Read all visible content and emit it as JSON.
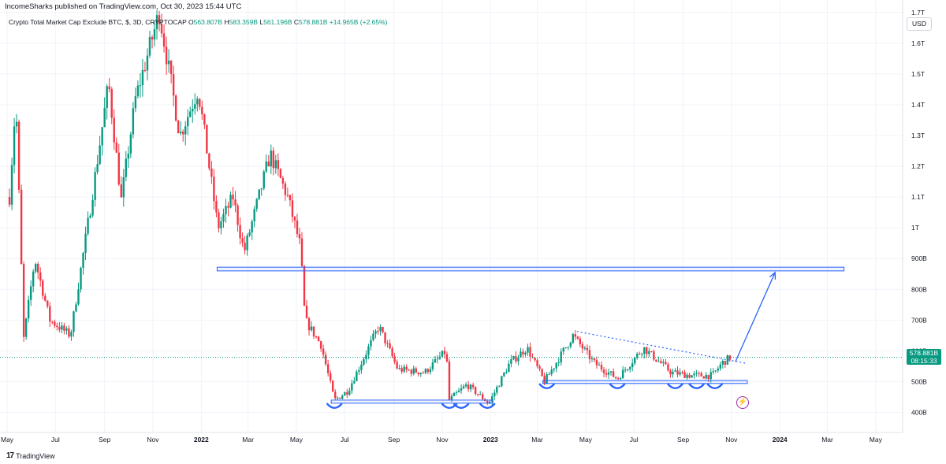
{
  "header": {
    "published": "IncomeSharks published on TradingView.com, Oct 30, 2023 15:44 UTC"
  },
  "legend": {
    "symbol": "Crypto Total Market Cap Exclude BTC, $, 3D, CRYPTOCAP",
    "o_label": "O",
    "o_value": "563.807B",
    "h_label": "H",
    "h_value": "583.359B",
    "l_label": "L",
    "l_value": "561.196B",
    "c_label": "C",
    "c_value": "578.881B",
    "change": "+14.965B (+2.65%)"
  },
  "currency": "USD",
  "price_tag": {
    "price": "578.881B",
    "countdown": "08:15:33"
  },
  "footer": {
    "brand": "TradingView"
  },
  "colors": {
    "up": "#089981",
    "down": "#f23645",
    "annotation": "#2962ff",
    "background": "#ffffff"
  },
  "chart_data": {
    "type": "candlestick",
    "title": "Crypto Total Market Cap Exclude BTC, $, 3D, CRYPTOCAP",
    "y_ticks": [
      "400B",
      "500B",
      "600B",
      "700B",
      "800B",
      "900B",
      "1T",
      "1.1T",
      "1.2T",
      "1.3T",
      "1.4T",
      "1.5T",
      "1.6T",
      "1.7T"
    ],
    "y_tick_values": [
      400,
      500,
      600,
      700,
      800,
      900,
      1000,
      1100,
      1200,
      1300,
      1400,
      1500,
      1600,
      1700
    ],
    "x_ticks": [
      "May",
      "Jul",
      "Sep",
      "Nov",
      "2022",
      "Mar",
      "May",
      "Jul",
      "Sep",
      "Nov",
      "2023",
      "Mar",
      "May",
      "Jul",
      "Sep",
      "Nov",
      "2024",
      "Mar",
      "May"
    ],
    "x_tick_dates": [
      "2021-05-01",
      "2021-07-01",
      "2021-09-01",
      "2021-11-01",
      "2022-01-01",
      "2022-03-01",
      "2022-05-01",
      "2022-07-01",
      "2022-09-01",
      "2022-11-01",
      "2023-01-01",
      "2023-03-01",
      "2023-05-01",
      "2023-07-01",
      "2023-09-01",
      "2023-11-01",
      "2024-01-01",
      "2024-03-01",
      "2024-05-01"
    ],
    "ylim": [
      345,
      1720
    ],
    "xlim": [
      "2021-04-28",
      "2024-05-31"
    ],
    "unit": "billions USD",
    "last_price": 578.881,
    "key_points": [
      {
        "date": "2021-05-04",
        "price": 1100
      },
      {
        "date": "2021-05-12",
        "price": 1420
      },
      {
        "date": "2021-05-22",
        "price": 640
      },
      {
        "date": "2021-06-05",
        "price": 900
      },
      {
        "date": "2021-06-24",
        "price": 700
      },
      {
        "date": "2021-07-20",
        "price": 650
      },
      {
        "date": "2021-08-15",
        "price": 1080
      },
      {
        "date": "2021-09-06",
        "price": 1470
      },
      {
        "date": "2021-09-22",
        "price": 1090
      },
      {
        "date": "2021-10-10",
        "price": 1420
      },
      {
        "date": "2021-11-09",
        "price": 1700
      },
      {
        "date": "2021-12-05",
        "price": 1300
      },
      {
        "date": "2021-12-28",
        "price": 1450
      },
      {
        "date": "2022-01-22",
        "price": 1000
      },
      {
        "date": "2022-02-10",
        "price": 1100
      },
      {
        "date": "2022-02-24",
        "price": 920
      },
      {
        "date": "2022-03-29",
        "price": 1240
      },
      {
        "date": "2022-04-20",
        "price": 1100
      },
      {
        "date": "2022-05-06",
        "price": 940
      },
      {
        "date": "2022-05-12",
        "price": 700
      },
      {
        "date": "2022-06-01",
        "price": 620
      },
      {
        "date": "2022-06-18",
        "price": 440
      },
      {
        "date": "2022-07-05",
        "price": 470
      },
      {
        "date": "2022-08-13",
        "price": 680
      },
      {
        "date": "2022-09-06",
        "price": 540
      },
      {
        "date": "2022-10-10",
        "price": 530
      },
      {
        "date": "2022-11-06",
        "price": 600
      },
      {
        "date": "2022-11-10",
        "price": 440
      },
      {
        "date": "2022-12-02",
        "price": 490
      },
      {
        "date": "2022-12-30",
        "price": 430
      },
      {
        "date": "2023-01-25",
        "price": 560
      },
      {
        "date": "2023-02-16",
        "price": 610
      },
      {
        "date": "2023-03-10",
        "price": 500
      },
      {
        "date": "2023-04-15",
        "price": 650
      },
      {
        "date": "2023-05-12",
        "price": 560
      },
      {
        "date": "2023-06-10",
        "price": 510
      },
      {
        "date": "2023-07-13",
        "price": 610
      },
      {
        "date": "2023-08-17",
        "price": 530
      },
      {
        "date": "2023-09-11",
        "price": 520
      },
      {
        "date": "2023-10-08",
        "price": 520
      },
      {
        "date": "2023-10-20",
        "price": 560
      },
      {
        "date": "2023-10-30",
        "price": 578.881
      }
    ],
    "annotations": {
      "resistance_zone": {
        "from": "2022-01-21",
        "to": "2024-03-22",
        "low": 860,
        "high": 872
      },
      "support_zone_1": {
        "from": "2022-06-14",
        "to": "2023-01-04",
        "low": 430,
        "high": 440
      },
      "support_zone_2": {
        "from": "2023-03-08",
        "to": "2023-11-21",
        "low": 494,
        "high": 504
      },
      "trendline": {
        "from": {
          "date": "2023-04-20",
          "price": 663
        },
        "to": {
          "date": "2023-11-19",
          "price": 560
        }
      },
      "projection_arrow": {
        "from": {
          "date": "2023-11-06",
          "price": 565
        },
        "to": {
          "date": "2023-12-26",
          "price": 855
        }
      },
      "bounce_marks": [
        "2022-06-18",
        "2022-11-10",
        "2022-11-25",
        "2022-12-28",
        "2023-03-13",
        "2023-06-10",
        "2023-08-22",
        "2023-09-18",
        "2023-10-11"
      ]
    }
  }
}
